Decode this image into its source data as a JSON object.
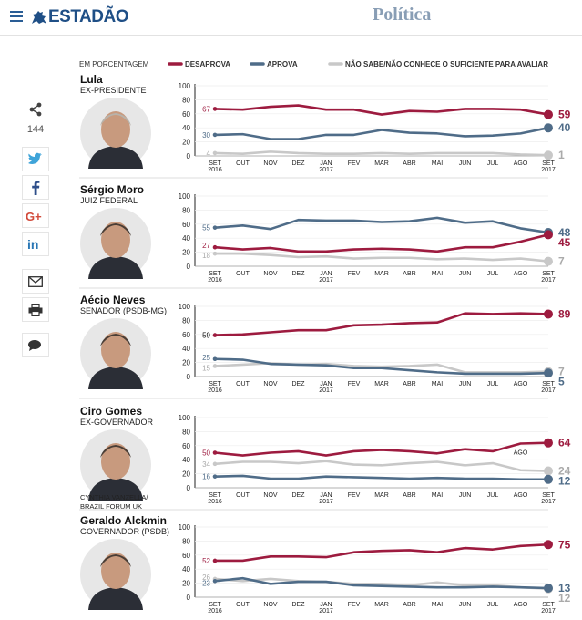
{
  "header": {
    "logo_text": "ESTADÃO",
    "section": "Política"
  },
  "share": {
    "count": "144",
    "buttons": [
      "twitter",
      "facebook",
      "google-plus",
      "linkedin",
      "email",
      "print",
      "comments"
    ]
  },
  "colors": {
    "desaprova": "#9d1b3f",
    "aprova": "#4f6c88",
    "nao_sabe": "#c8c8c8",
    "brand": "#1f4f86"
  },
  "legend": {
    "unit": "EM PORCENTAGEM",
    "desaprova": "DESAPROVA",
    "aprova": "APROVA",
    "nao_sabe": "NÃO SABE/NÃO CONHECE O SUFICIENTE PARA AVALIAR"
  },
  "chart_data": {
    "type": "line",
    "title": "EM PORCENTAGEM",
    "x_labels": [
      "SET",
      "OUT",
      "NOV",
      "DEZ",
      "JAN",
      "FEV",
      "MAR",
      "ABR",
      "MAI",
      "JUN",
      "JUL",
      "AGO",
      "SET"
    ],
    "x_sublabels": [
      "2016",
      "",
      "",
      "",
      "2017",
      "",
      "",
      "",
      "",
      "",
      "",
      "",
      "2017"
    ],
    "ylim": [
      0,
      100
    ],
    "yticks": [
      "100",
      "80",
      "60",
      "40",
      "20",
      "0"
    ],
    "panels": [
      {
        "name": "Lula",
        "role": "EX-PRESIDENTE",
        "series": [
          {
            "name": "DESAPROVA",
            "values": [
              67,
              66,
              70,
              72,
              66,
              66,
              59,
              64,
              63,
              67,
              67,
              66,
              59
            ]
          },
          {
            "name": "APROVA",
            "values": [
              30,
              31,
              24,
              24,
              30,
              30,
              37,
              33,
              32,
              28,
              29,
              32,
              40
            ]
          },
          {
            "name": "NÃO SABE/NÃO CONHECE O SUFICIENTE PARA AVALIAR",
            "values": [
              4,
              3,
              6,
              4,
              3,
              3,
              4,
              3,
              4,
              4,
              4,
              2,
              1
            ]
          }
        ],
        "start_labels": [
          "67",
          "30",
          "4"
        ],
        "end_labels": [
          "59",
          "40",
          "1"
        ],
        "credit": ""
      },
      {
        "name": "Sérgio Moro",
        "role": "JUIZ FEDERAL",
        "series": [
          {
            "name": "DESAPROVA",
            "values": [
              27,
              24,
              26,
              21,
              21,
              24,
              25,
              24,
              21,
              27,
              27,
              35,
              45
            ]
          },
          {
            "name": "APROVA",
            "values": [
              55,
              58,
              53,
              66,
              65,
              65,
              63,
              64,
              69,
              62,
              64,
              54,
              48
            ]
          },
          {
            "name": "NÃO SABE/NÃO CONHECE O SUFICIENTE PARA AVALIAR",
            "values": [
              18,
              18,
              16,
              13,
              14,
              11,
              12,
              12,
              10,
              11,
              9,
              11,
              7
            ]
          }
        ],
        "start_labels": [
          "27",
          "55",
          "18"
        ],
        "end_labels": [
          "45",
          "48",
          "7"
        ],
        "credit": ""
      },
      {
        "name": "Aécio Neves",
        "role": "SENADOR (PSDB-MG)",
        "series": [
          {
            "name": "DESAPROVA",
            "values": [
              59,
              60,
              63,
              66,
              66,
              73,
              74,
              76,
              77,
              90,
              89,
              90,
              89
            ]
          },
          {
            "name": "APROVA",
            "values": [
              25,
              24,
              18,
              17,
              16,
              12,
              12,
              9,
              6,
              4,
              4,
              4,
              5
            ]
          },
          {
            "name": "NÃO SABE/NÃO CONHECE O SUFICIENTE PARA AVALIAR",
            "values": [
              15,
              17,
              19,
              17,
              18,
              15,
              14,
              15,
              17,
              6,
              6,
              6,
              7
            ]
          }
        ],
        "start_labels": [
          "59",
          "25",
          "15"
        ],
        "end_labels": [
          "89",
          "5",
          "7"
        ],
        "credit": ""
      },
      {
        "name": "Ciro Gomes",
        "role": "EX-GOVERNADOR",
        "series": [
          {
            "name": "DESAPROVA",
            "values": [
              50,
              46,
              50,
              52,
              46,
              52,
              54,
              52,
              49,
              55,
              52,
              63,
              64
            ]
          },
          {
            "name": "APROVA",
            "values": [
              16,
              17,
              13,
              13,
              16,
              15,
              14,
              13,
              14,
              13,
              13,
              12,
              12
            ]
          },
          {
            "name": "NÃO SABE/NÃO CONHECE O SUFICIENTE PARA AVALIAR",
            "values": [
              34,
              37,
              37,
              35,
              38,
              33,
              32,
              35,
              37,
              32,
              35,
              25,
              24
            ]
          }
        ],
        "start_labels": [
          "50",
          "16",
          "34"
        ],
        "end_labels": [
          "64",
          "12",
          "24"
        ],
        "end_note": "AGO",
        "credit": "CYNTHIA VANZELLA/ BRAZIL FORUM UK"
      },
      {
        "name": "Geraldo Alckmin",
        "role": "GOVERNADOR (PSDB)",
        "series": [
          {
            "name": "DESAPROVA",
            "values": [
              52,
              52,
              58,
              58,
              57,
              64,
              66,
              67,
              64,
              70,
              68,
              73,
              75
            ]
          },
          {
            "name": "APROVA",
            "values": [
              23,
              27,
              19,
              22,
              22,
              17,
              16,
              15,
              14,
              14,
              15,
              14,
              13
            ]
          },
          {
            "name": "NÃO SABE/NÃO CONHECE O SUFICIENTE PARA AVALIAR",
            "values": [
              26,
              23,
              26,
              23,
              22,
              19,
              19,
              17,
              21,
              17,
              17,
              14,
              12
            ]
          }
        ],
        "start_labels": [
          "52",
          "23",
          "26"
        ],
        "end_labels": [
          "75",
          "13",
          "12"
        ],
        "credit": ""
      }
    ]
  }
}
